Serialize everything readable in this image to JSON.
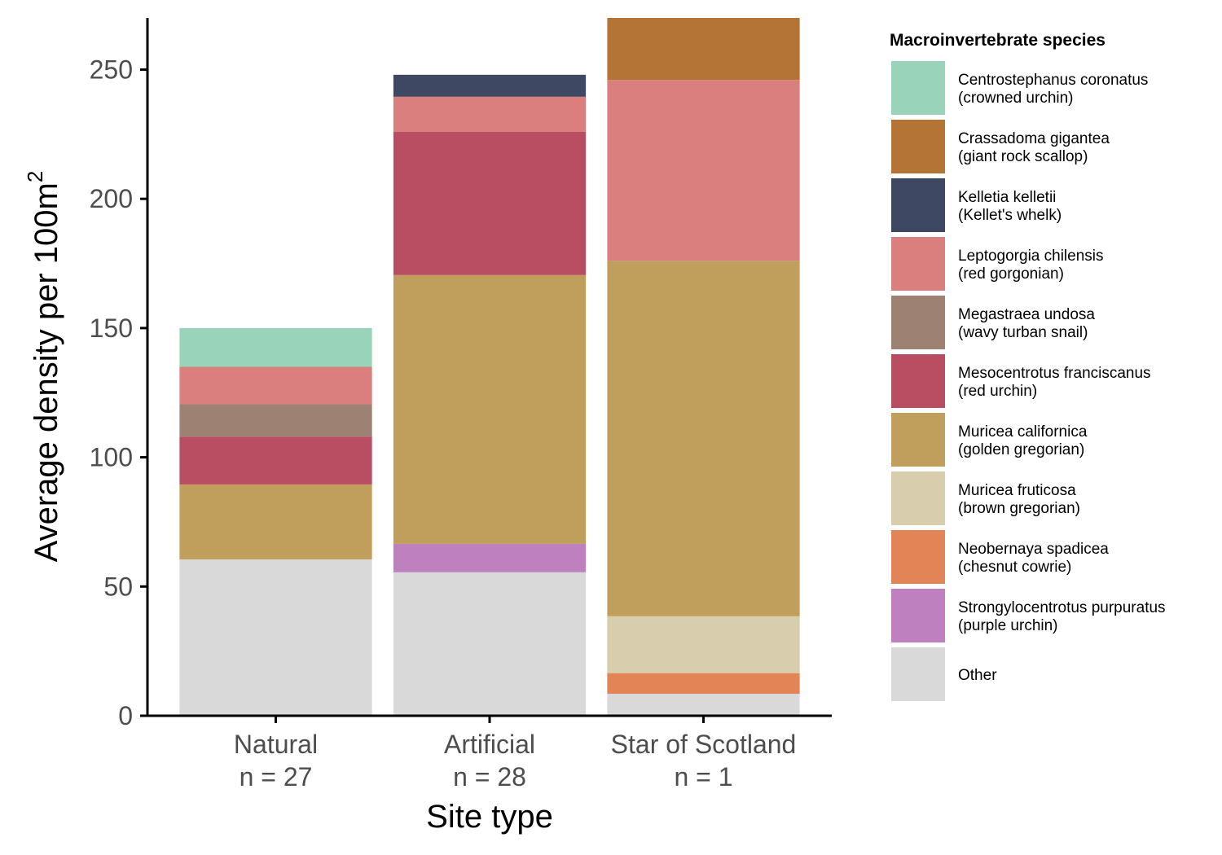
{
  "chart_data": {
    "type": "bar",
    "stacked": true,
    "title": "",
    "xlabel": "Site type",
    "ylabel": "Average density per 100m",
    "ylabel_superscript": "2",
    "ylim": [
      0,
      270
    ],
    "yticks": [
      0,
      50,
      100,
      150,
      200,
      250
    ],
    "grid": false,
    "legend_position": "right",
    "categories": [
      {
        "name": "Natural",
        "n_label": "n = 27"
      },
      {
        "name": "Artificial",
        "n_label": "n = 28"
      },
      {
        "name": "Star of Scotland",
        "n_label": "n = 1"
      }
    ],
    "legend": {
      "title": "Macroinvertebrate species",
      "items": [
        {
          "key": "cent",
          "line1": "Centrostephanus coronatus",
          "line2": "(crowned urchin)",
          "color": "#99D4BA"
        },
        {
          "key": "crass",
          "line1": "Crassadoma gigantea",
          "line2": "(giant rock scallop)",
          "color": "#B37436"
        },
        {
          "key": "kell",
          "line1": "Kelletia kelletii",
          "line2": "(Kellet's whelk)",
          "color": "#3F4863"
        },
        {
          "key": "lepto",
          "line1": "Leptogorgia chilensis",
          "line2": "(red gorgonian)",
          "color": "#DA7E7E"
        },
        {
          "key": "mega",
          "line1": "Megastraea undosa",
          "line2": "(wavy turban snail)",
          "color": "#9D8273"
        },
        {
          "key": "meso",
          "line1": "Mesocentrotus franciscanus",
          "line2": "(red urchin)",
          "color": "#B94D62"
        },
        {
          "key": "mcal",
          "line1": "Muricea californica",
          "line2": "(golden gregorian)",
          "color": "#C09E5C"
        },
        {
          "key": "mfru",
          "line1": "Muricea fruticosa",
          "line2": "(brown gregorian)",
          "color": "#D8CEAD"
        },
        {
          "key": "neo",
          "line1": "Neobernaya spadicea",
          "line2": "(chesnut cowrie)",
          "color": "#E28455"
        },
        {
          "key": "strong",
          "line1": "Strongylocentrotus purpuratus",
          "line2": "(purple urchin)",
          "color": "#BE80BE"
        },
        {
          "key": "other",
          "line1": "Other",
          "line2": "",
          "color": "#D9D9D9"
        }
      ]
    },
    "stack_order_bottom_to_top": [
      "other",
      "strong",
      "neo",
      "mfru",
      "mcal",
      "meso",
      "mega",
      "lepto",
      "kell",
      "crass",
      "cent"
    ],
    "series": [
      {
        "key": "other",
        "values": [
          60.5,
          55.5,
          8.5
        ]
      },
      {
        "key": "strong",
        "values": [
          0,
          11,
          0
        ]
      },
      {
        "key": "neo",
        "values": [
          0,
          0,
          8
        ]
      },
      {
        "key": "mfru",
        "values": [
          0,
          0,
          22
        ]
      },
      {
        "key": "mcal",
        "values": [
          29,
          104,
          137.5
        ]
      },
      {
        "key": "meso",
        "values": [
          18.5,
          55.5,
          0
        ]
      },
      {
        "key": "mega",
        "values": [
          12.5,
          0,
          0
        ]
      },
      {
        "key": "lepto",
        "values": [
          14.5,
          13.5,
          70
        ]
      },
      {
        "key": "kell",
        "values": [
          0,
          8.5,
          0
        ]
      },
      {
        "key": "crass",
        "values": [
          0,
          0,
          24
        ]
      },
      {
        "key": "cent",
        "values": [
          15,
          0,
          0
        ]
      }
    ]
  }
}
